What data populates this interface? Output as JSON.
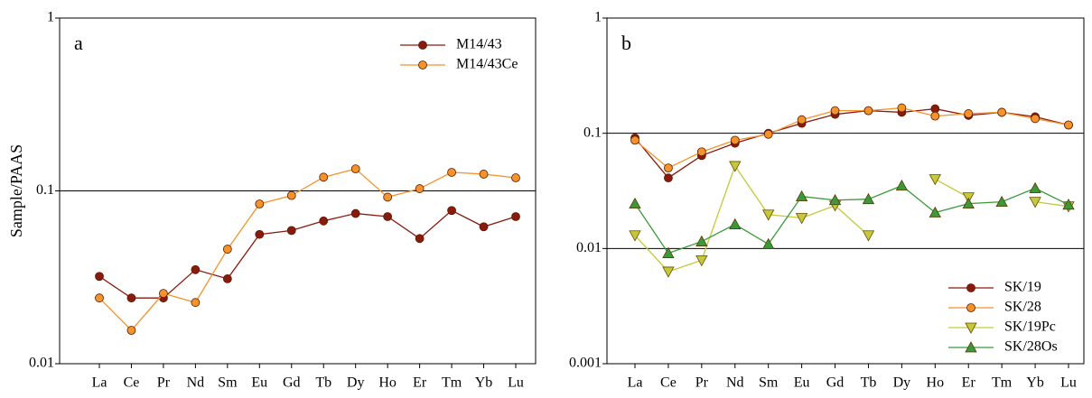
{
  "chart_data": [
    {
      "type": "line",
      "panel_label": "a",
      "ylabel": "Sample/PAAS",
      "log_y": true,
      "grid": true,
      "legend": "upper right",
      "categories": [
        "La",
        "Ce",
        "Pr",
        "Nd",
        "Sm",
        "Eu",
        "Gd",
        "Tb",
        "Dy",
        "Ho",
        "Er",
        "Tm",
        "Yb",
        "Lu"
      ],
      "ylim": [
        0.01,
        1
      ],
      "yticks": [
        0.01,
        0.1,
        1
      ],
      "series": [
        {
          "name": "M14/43",
          "color": "#8b1a0e",
          "marker": "circle",
          "values": [
            0.032,
            0.024,
            0.024,
            0.035,
            0.031,
            0.056,
            0.059,
            0.067,
            0.074,
            0.071,
            0.053,
            0.077,
            0.062,
            0.071
          ]
        },
        {
          "name": "M14/43Ce",
          "color": "#f5922a",
          "marker": "circle",
          "values": [
            0.024,
            0.0156,
            0.0255,
            0.0226,
            0.046,
            0.084,
            0.094,
            0.12,
            0.134,
            0.092,
            0.103,
            0.128,
            0.125,
            0.119
          ]
        }
      ]
    },
    {
      "type": "line",
      "panel_label": "b",
      "log_y": true,
      "grid": true,
      "legend": "lower right",
      "categories": [
        "La",
        "Ce",
        "Pr",
        "Nd",
        "Sm",
        "Eu",
        "Gd",
        "Tb",
        "Dy",
        "Ho",
        "Er",
        "Tm",
        "Yb",
        "Lu"
      ],
      "ylim": [
        0.001,
        1
      ],
      "yticks": [
        0.001,
        0.01,
        0.1,
        1
      ],
      "series": [
        {
          "name": "SK/19",
          "color": "#8b1a0e",
          "marker": "circle",
          "values": [
            0.091,
            0.041,
            0.064,
            0.082,
            0.1,
            0.122,
            0.146,
            0.157,
            0.152,
            0.163,
            0.143,
            0.152,
            0.139,
            0.118
          ]
        },
        {
          "name": "SK/28",
          "color": "#f5922a",
          "marker": "circle",
          "values": [
            0.087,
            0.05,
            0.069,
            0.087,
            0.098,
            0.131,
            0.157,
            0.157,
            0.166,
            0.141,
            0.148,
            0.152,
            0.134,
            0.118
          ]
        },
        {
          "name": "SK/19Pc",
          "color": "#c3c93a",
          "marker": "triangle-down",
          "values": [
            0.013,
            0.0063,
            0.0079,
            0.052,
            0.0197,
            0.0184,
            0.0236,
            0.013,
            null,
            0.04,
            0.0278,
            null,
            0.0254,
            0.0232
          ]
        },
        {
          "name": "SK/28Os",
          "color": "#3a9a3a",
          "marker": "triangle-up",
          "values": [
            0.0245,
            0.0091,
            0.0115,
            0.0162,
            0.0109,
            0.0283,
            0.0263,
            0.0268,
            0.0351,
            0.0205,
            0.0245,
            0.0254,
            0.0333,
            0.024
          ]
        }
      ]
    }
  ]
}
